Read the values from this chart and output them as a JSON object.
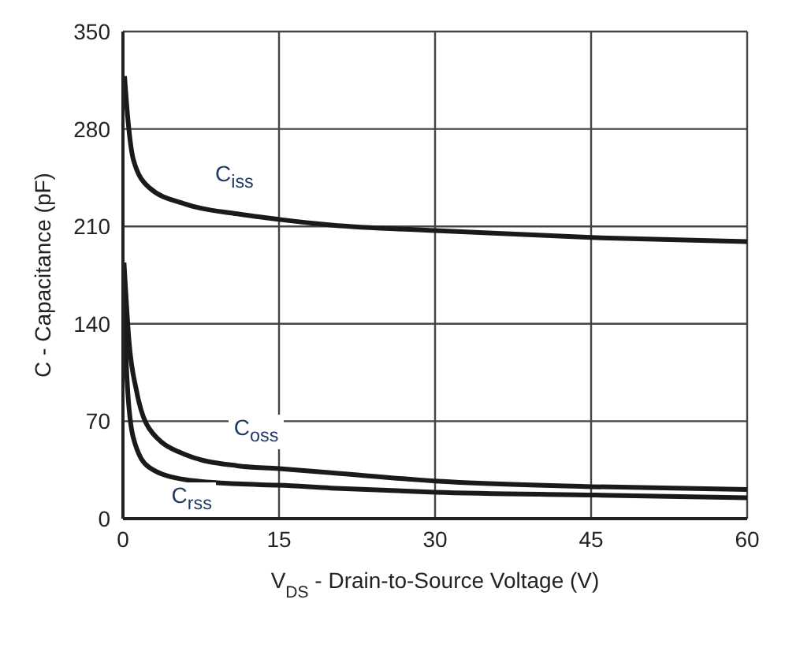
{
  "chart_data": {
    "type": "line",
    "xlabel": "V$_{DS}$ - Drain-to-Source Voltage (V)",
    "ylabel": "C - Capacitance (pF)",
    "xlim": [
      0,
      60
    ],
    "xticks": [
      0,
      15,
      30,
      45,
      60
    ],
    "ylim": [
      0,
      350
    ],
    "yticks": [
      0,
      70,
      140,
      210,
      280,
      350
    ],
    "grid": true,
    "line_style": "solid",
    "marker": "none",
    "series": [
      {
        "color": "#1a1a1a",
        "x": [
          0.15,
          0.5,
          1,
          2.5,
          6,
          11,
          15,
          20,
          30,
          45,
          60
        ],
        "values": [
          318,
          285,
          258,
          238,
          226,
          219,
          215,
          211,
          207,
          202,
          199
        ]
      },
      {
        "color": "#1a1a1a",
        "x": [
          0.1,
          0.6,
          1.3,
          2.5,
          6,
          11,
          15,
          20,
          30,
          45,
          60
        ],
        "values": [
          184,
          126,
          92,
          65,
          46,
          38,
          36,
          33,
          27,
          23,
          21
        ]
      },
      {
        "color": "#1a1a1a",
        "x": [
          0.1,
          0.4,
          1,
          2.5,
          6,
          11,
          15,
          20,
          30,
          45,
          60
        ],
        "values": [
          160,
          99,
          58,
          37,
          28,
          25,
          24,
          22,
          19,
          17,
          15
        ]
      }
    ],
    "annotations": [
      "C$_{iss}$",
      "C$_{oss}$",
      "C$_{rss}$"
    ]
  }
}
